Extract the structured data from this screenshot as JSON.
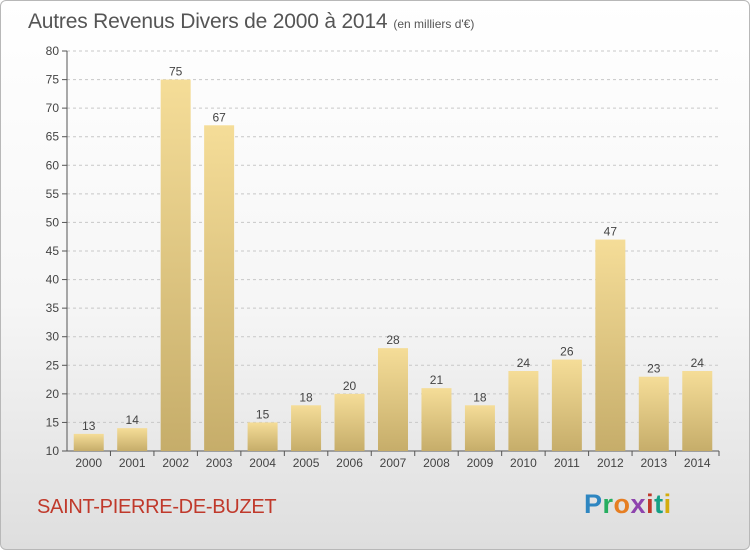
{
  "header": {
    "title": "Autres Revenus Divers de 2000 à 2014",
    "unit": "(en milliers d'€)"
  },
  "footer": {
    "commune": "SAINT-PIERRE-DE-BUZET",
    "logo_text": "Proxiti",
    "commune_color": "#c0392b"
  },
  "chart_data": {
    "type": "bar",
    "title": "Autres Revenus Divers de 2000 à 2014",
    "subtitle": "(en milliers d'€)",
    "xlabel": "",
    "ylabel": "",
    "categories": [
      "2000",
      "2001",
      "2002",
      "2003",
      "2004",
      "2005",
      "2006",
      "2007",
      "2008",
      "2009",
      "2010",
      "2011",
      "2012",
      "2013",
      "2014"
    ],
    "values": [
      13,
      14,
      75,
      67,
      15,
      18,
      20,
      28,
      21,
      18,
      24,
      26,
      47,
      23,
      24
    ],
    "data_labels": [
      "13",
      "14",
      "75",
      "67",
      "15",
      "18",
      "20",
      "28",
      "21",
      "18",
      "24",
      "26",
      "47",
      "23",
      "24"
    ],
    "ylim": [
      10,
      80
    ],
    "yticks": [
      10,
      15,
      20,
      25,
      30,
      35,
      40,
      45,
      50,
      55,
      60,
      65,
      70,
      75,
      80
    ],
    "grid": "horizontal dashed",
    "bar_color_top": "#f5dd98",
    "bar_color_bottom": "#c6ad6a"
  }
}
